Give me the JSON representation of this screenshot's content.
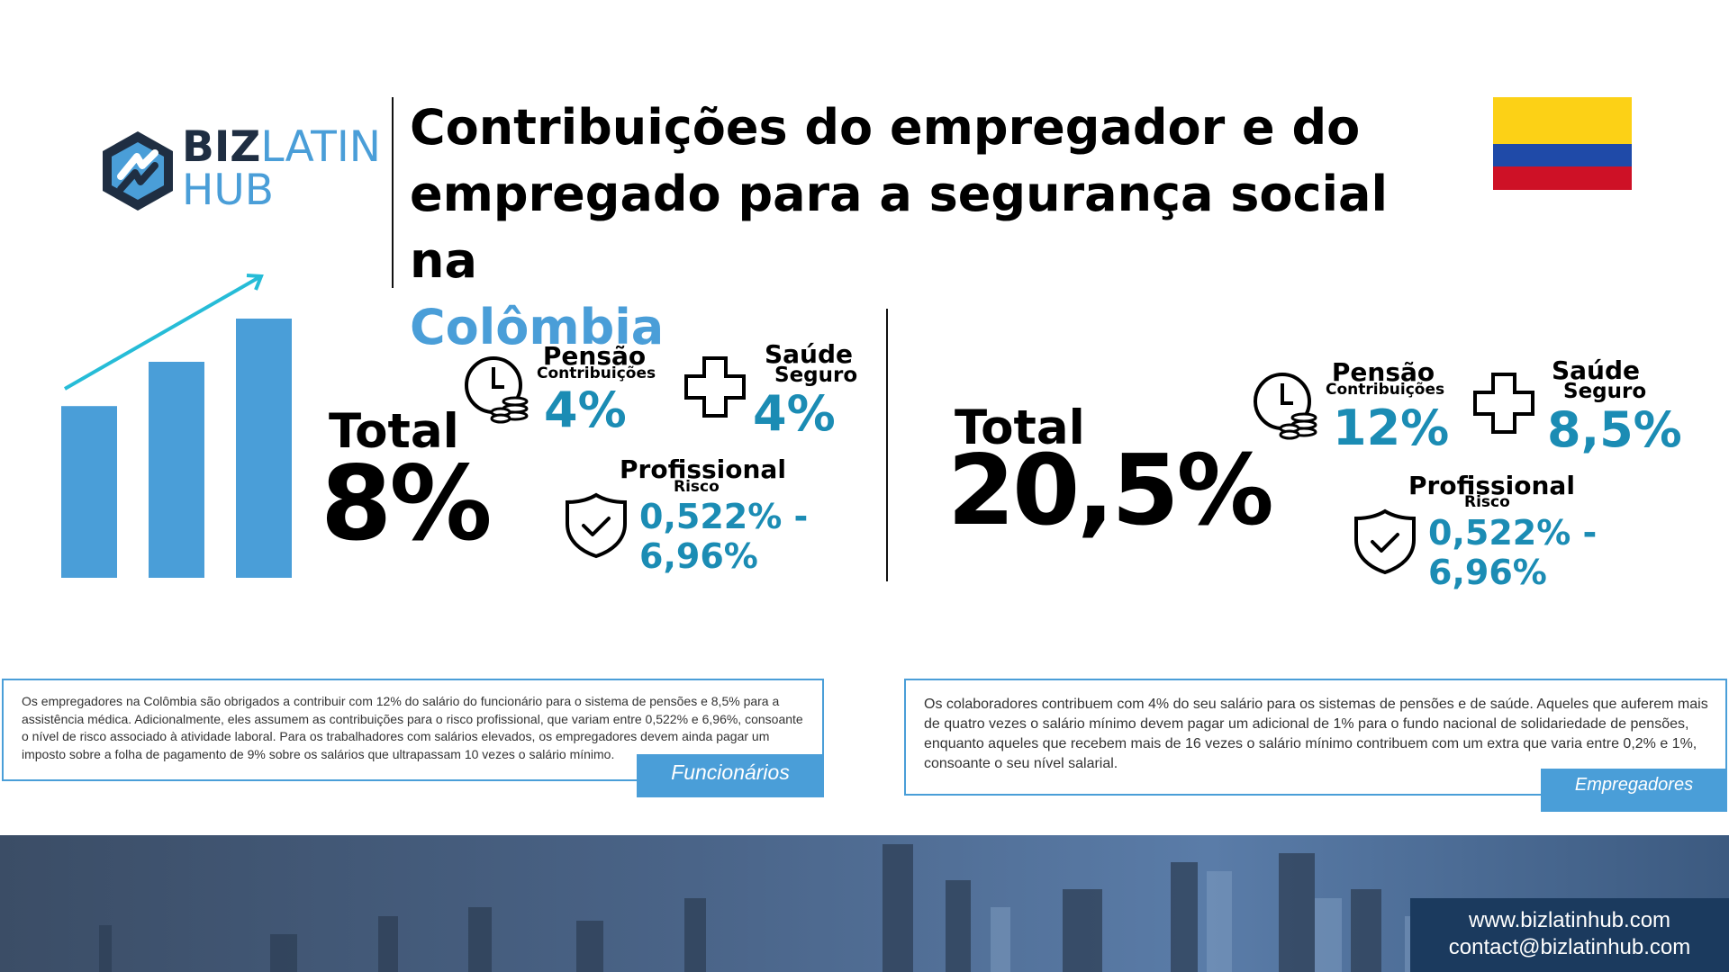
{
  "brand": {
    "word1": "BIZ",
    "word2": "LATIN",
    "word3": "HUB",
    "colors": {
      "dark": "#1f2e42",
      "blue": "#4a9ed8"
    }
  },
  "title": {
    "line1": "Contribuições do empregador e do",
    "line2": "empregado para a segurança social na",
    "line3": "Colômbia"
  },
  "flag": {
    "country": "Colombia",
    "colors": [
      "#fcd116",
      "#1f4aa8",
      "#ce1126"
    ]
  },
  "chart_data": {
    "type": "bar",
    "categories": [
      "",
      "",
      ""
    ],
    "values": [
      159,
      200,
      240
    ],
    "trend_arrow": true,
    "color": "#4a9ed8"
  },
  "left_block": {
    "total_label": "Total",
    "total_value": "8%",
    "pension": {
      "title": "Pensão",
      "subtitle": "Contribuições",
      "value": "4%",
      "icon": "clock-coins-icon"
    },
    "health": {
      "title": "Saúde",
      "subtitle": "Seguro",
      "value": "4%",
      "icon": "plus-cross-icon"
    },
    "risk": {
      "title": "Profissional",
      "subtitle": "Risco",
      "value_line1": "0,522% -",
      "value_line2": "6,96%",
      "icon": "shield-check-icon"
    }
  },
  "right_block": {
    "total_label": "Total",
    "total_value": "20,5%",
    "pension": {
      "title": "Pensão",
      "subtitle": "Contribuições",
      "value": "12%",
      "icon": "clock-coins-icon"
    },
    "health": {
      "title": "Saúde",
      "subtitle": "Seguro",
      "value": "8,5%",
      "icon": "plus-cross-icon"
    },
    "risk": {
      "title": "Profissional",
      "subtitle": "Risco",
      "value_line1": "0,522% -",
      "value_line2": "6,96%",
      "icon": "shield-check-icon"
    }
  },
  "box_left": {
    "text": "Os empregadores na Colômbia são obrigados a contribuir com 12% do salário do funcionário para o sistema de pensões e 8,5% para a assistência médica. Adicionalmente, eles assumem as contribuições para o risco profissional, que variam entre 0,522% e 6,96%, consoante o nível de risco associado à atividade laboral. Para os trabalhadores com salários elevados, os empregadores devem ainda pagar um imposto sobre a folha de pagamento de 9% sobre os salários que ultrapassam 10 vezes o salário mínimo.",
    "tag": "Funcionários"
  },
  "box_right": {
    "text": "Os colaboradores contribuem com 4% do seu salário para os sistemas de pensões e de saúde. Aqueles que auferem mais de quatro vezes o salário mínimo devem pagar um adicional de 1% para o fundo nacional de solidariedade de pensões, enquanto aqueles que recebem mais de 16 vezes o salário mínimo contribuem com um extra que varia entre 0,2% e 1%, consoante o seu nível salarial.",
    "tag": "Empregadores"
  },
  "footer": {
    "website": "www.bizlatinhub.com",
    "email": "contact@bizlatinhub.com"
  }
}
